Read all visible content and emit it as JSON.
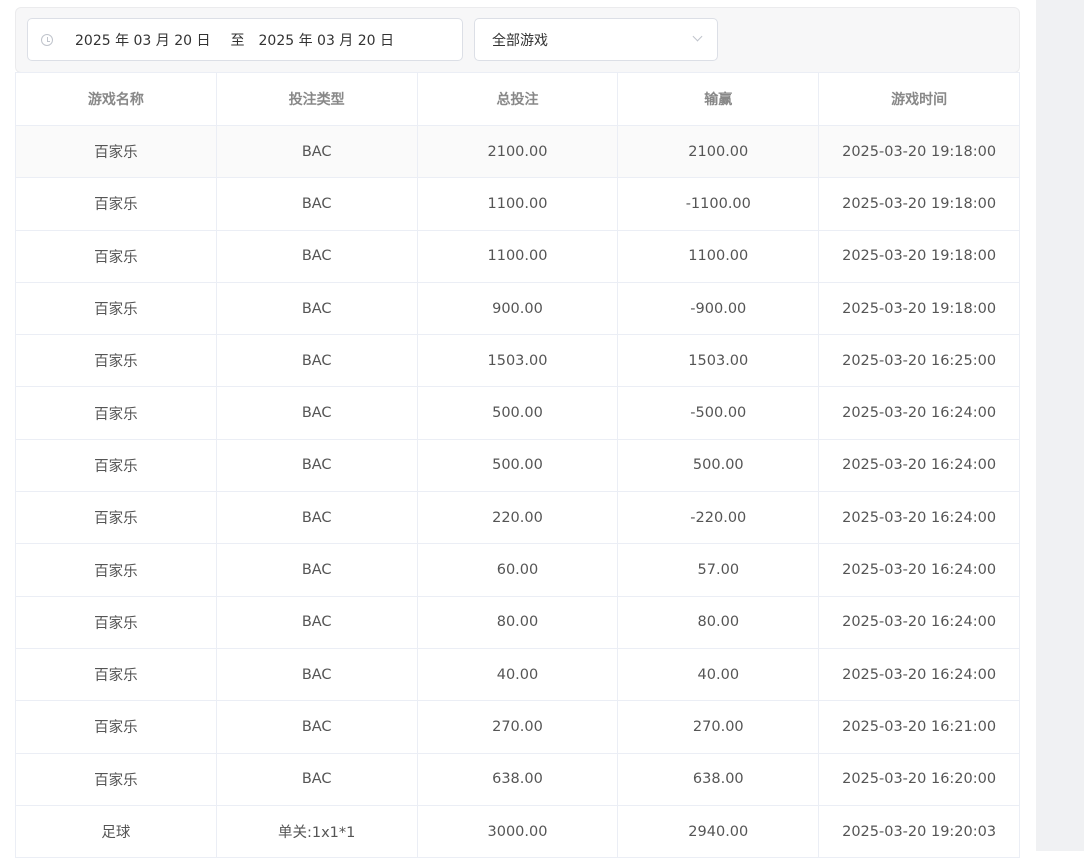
{
  "filter": {
    "date_start": "2025 年 03 月 20 日",
    "date_sep": "至",
    "date_end": "2025 年 03 月 20 日",
    "game_select": "全部游戏"
  },
  "table": {
    "headers": [
      "游戏名称",
      "投注类型",
      "总投注",
      "输赢",
      "游戏时间"
    ],
    "rows": [
      [
        "百家乐",
        "BAC",
        "2100.00",
        "2100.00",
        "2025-03-20 19:18:00"
      ],
      [
        "百家乐",
        "BAC",
        "1100.00",
        "-1100.00",
        "2025-03-20 19:18:00"
      ],
      [
        "百家乐",
        "BAC",
        "1100.00",
        "1100.00",
        "2025-03-20 19:18:00"
      ],
      [
        "百家乐",
        "BAC",
        "900.00",
        "-900.00",
        "2025-03-20 19:18:00"
      ],
      [
        "百家乐",
        "BAC",
        "1503.00",
        "1503.00",
        "2025-03-20 16:25:00"
      ],
      [
        "百家乐",
        "BAC",
        "500.00",
        "-500.00",
        "2025-03-20 16:24:00"
      ],
      [
        "百家乐",
        "BAC",
        "500.00",
        "500.00",
        "2025-03-20 16:24:00"
      ],
      [
        "百家乐",
        "BAC",
        "220.00",
        "-220.00",
        "2025-03-20 16:24:00"
      ],
      [
        "百家乐",
        "BAC",
        "60.00",
        "57.00",
        "2025-03-20 16:24:00"
      ],
      [
        "百家乐",
        "BAC",
        "80.00",
        "80.00",
        "2025-03-20 16:24:00"
      ],
      [
        "百家乐",
        "BAC",
        "40.00",
        "40.00",
        "2025-03-20 16:24:00"
      ],
      [
        "百家乐",
        "BAC",
        "270.00",
        "270.00",
        "2025-03-20 16:21:00"
      ],
      [
        "百家乐",
        "BAC",
        "638.00",
        "638.00",
        "2025-03-20 16:20:00"
      ],
      [
        "足球",
        "单关:1x1*1",
        "3000.00",
        "2940.00",
        "2025-03-20 19:20:03"
      ]
    ]
  }
}
